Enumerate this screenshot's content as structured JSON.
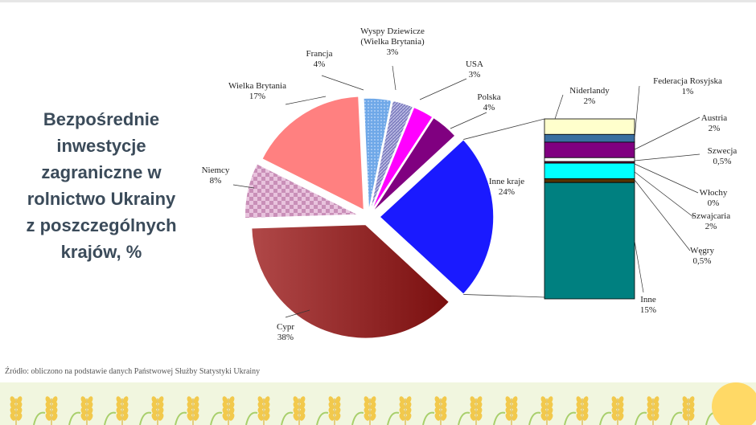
{
  "title_text": "Bezpośrednie\ninwestycje\nzagraniczne w\nrolnictwo Ukrainy\nz poszczególnych\nkrajów, %",
  "source_text": "Źródło: obliczono na podstawie danych Państwowej Służby Statystyki Ukrainy",
  "chart_data": {
    "type": "pie",
    "title": "Bezpośrednie inwestycje zagraniczne w rolnictwo Ukrainy z poszczególnych krajów, %",
    "unit": "%",
    "slices": [
      {
        "name": "Cypr",
        "label": "38%",
        "value": 38,
        "color": "#8b1a1a"
      },
      {
        "name": "Niemcy",
        "label": "8%",
        "value": 8,
        "color": "#c98fb8"
      },
      {
        "name": "Wielka Brytania",
        "label": "17%",
        "value": 17,
        "color": "#ff8080"
      },
      {
        "name": "Francja",
        "label": "4%",
        "value": 4,
        "color": "#6fa8e8"
      },
      {
        "name": "Wyspy Dziewicze\n(Wielka Brytania)",
        "label": "3%",
        "value": 3,
        "color": "#8080c0"
      },
      {
        "name": "USA",
        "label": "3%",
        "value": 3,
        "color": "#ff00ff"
      },
      {
        "name": "Polska",
        "label": "4%",
        "value": 4,
        "color": "#800080"
      },
      {
        "name": "Inne kraje",
        "label": "24%",
        "value": 24,
        "color": "#1a1aff"
      }
    ],
    "breakdown_of": "Inne kraje",
    "breakdown": [
      {
        "name": "Niderlandy",
        "label": "2%",
        "value": 2,
        "color": "#ffffcc"
      },
      {
        "name": "Federacja Rosyjska",
        "label": "1%",
        "value": 1,
        "color": "#3a6fa0"
      },
      {
        "name": "Austria",
        "label": "2%",
        "value": 2,
        "color": "#800080"
      },
      {
        "name": "Szwecja",
        "label": "0,5%",
        "value": 0.5,
        "color": "#ffffff"
      },
      {
        "name": "Włochy",
        "label": "0%",
        "value": 0,
        "color": "#660033"
      },
      {
        "name": "Szwajcaria",
        "label": "2%",
        "value": 2,
        "color": "#00ffff"
      },
      {
        "name": "Węgry",
        "label": "0,5%",
        "value": 0.5,
        "color": "#553300"
      },
      {
        "name": "Inne",
        "label": "15%",
        "value": 15,
        "color": "#008080"
      }
    ]
  }
}
